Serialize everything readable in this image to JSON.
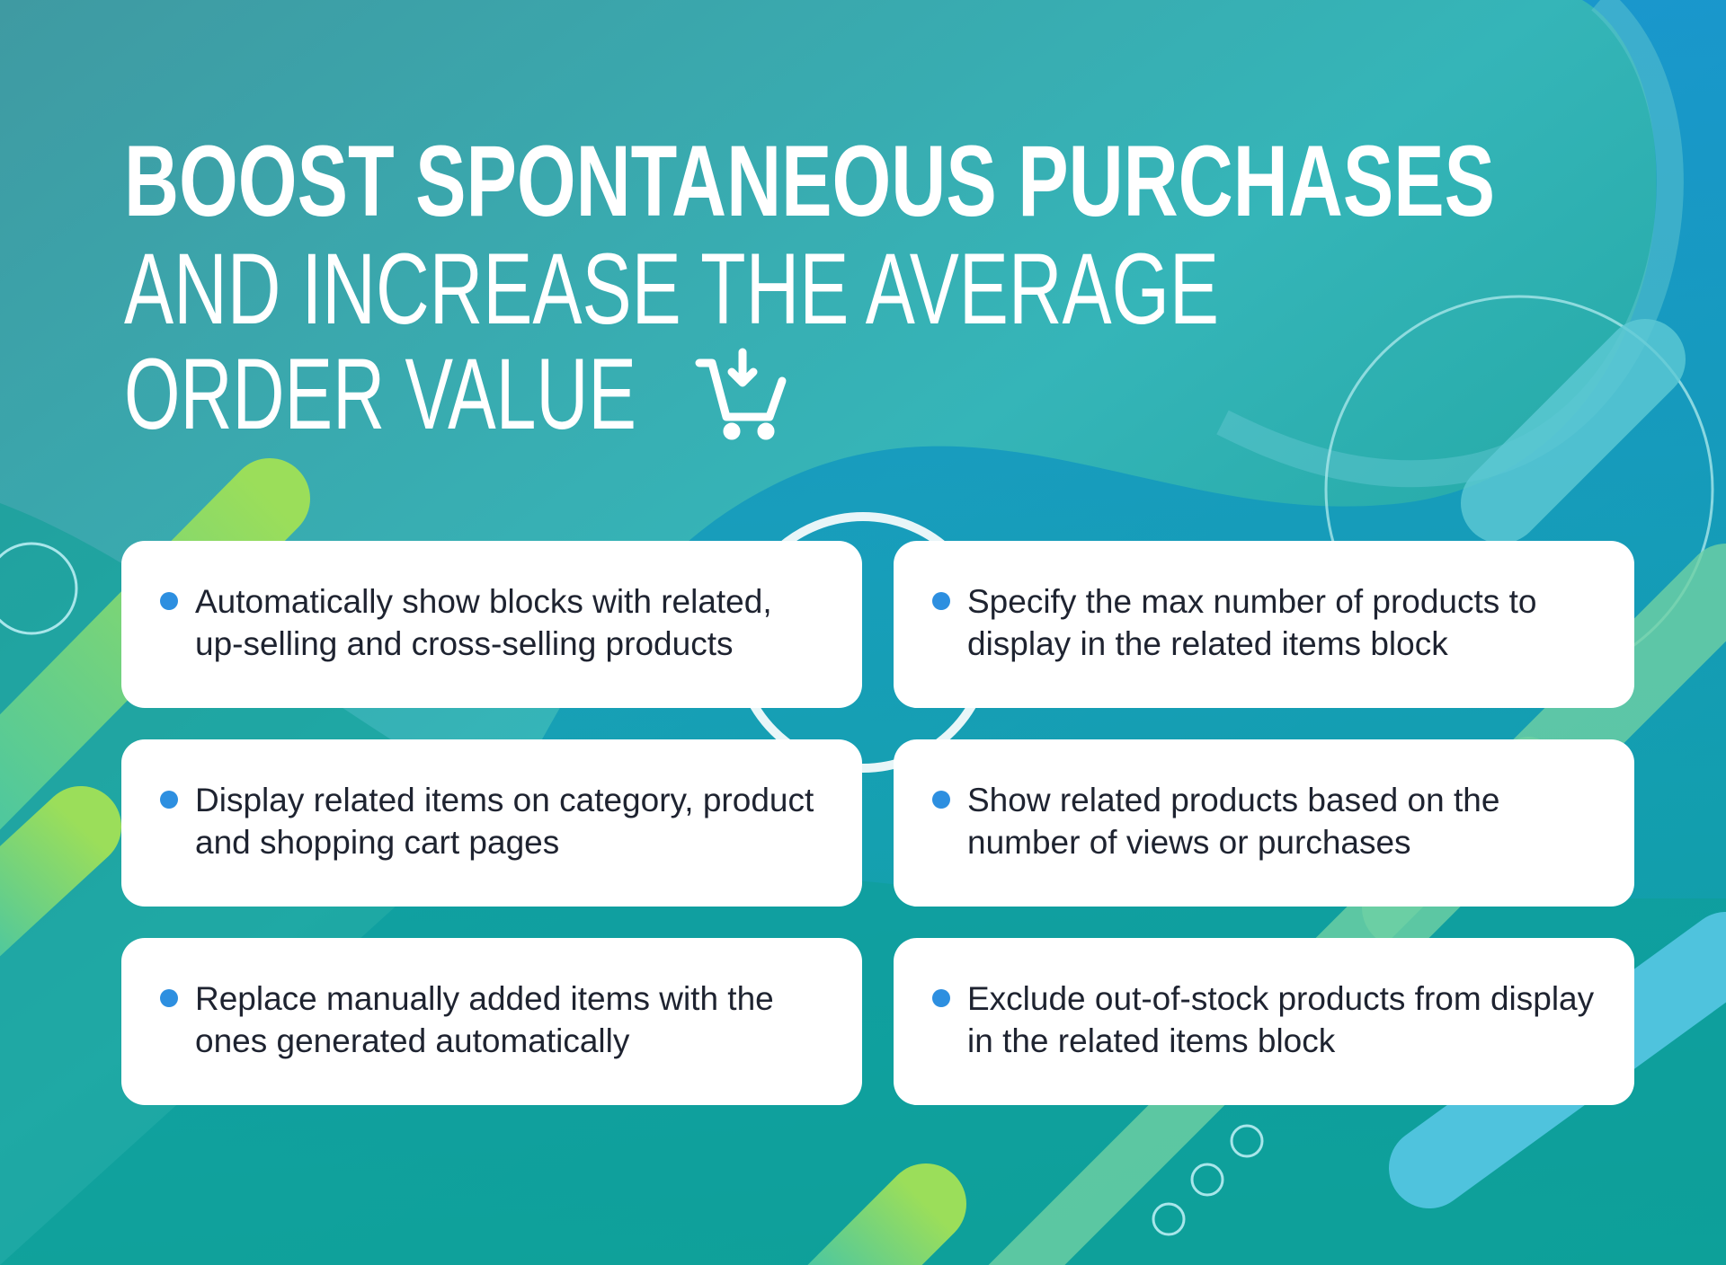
{
  "headline": {
    "bold": "BOOST SPONTANEOUS PURCHASES",
    "light_lines": [
      "AND INCREASE THE AVERAGE",
      "ORDER VALUE"
    ]
  },
  "features": [
    "Automatically show blocks with related, up-selling and cross-selling products",
    "Specify the max number of products to display in the related items block",
    "Display related items on category, product and shopping cart pages",
    "Show related products based on the number of views or purchases",
    "Replace manually added items with the ones generated automatically",
    "Exclude out-of-stock products from display in the related items block"
  ]
}
